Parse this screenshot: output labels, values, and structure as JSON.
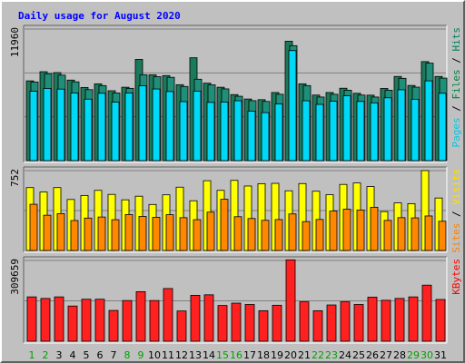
{
  "chart_data": {
    "type": "bar",
    "title": "Daily usage for August 2020",
    "categories": [
      "1",
      "2",
      "3",
      "4",
      "5",
      "6",
      "7",
      "8",
      "9",
      "10",
      "11",
      "12",
      "13",
      "14",
      "15",
      "16",
      "17",
      "18",
      "19",
      "20",
      "21",
      "22",
      "23",
      "24",
      "25",
      "26",
      "27",
      "28",
      "29",
      "30",
      "31"
    ],
    "weekend_days": [
      "1",
      "2",
      "8",
      "9",
      "15",
      "16",
      "22",
      "23",
      "29",
      "30"
    ],
    "panels": [
      {
        "id": "hits",
        "max_label": "11960",
        "ylim": [
          0,
          11960
        ],
        "ylabel_parts": [
          {
            "text": "Pages",
            "color": "#00c8e8"
          },
          {
            "text": " / ",
            "color": "#000000"
          },
          {
            "text": "Files",
            "color": "#008040"
          },
          {
            "text": " / ",
            "color": "#000000"
          },
          {
            "text": "Hits",
            "color": "#00805c"
          }
        ],
        "series": [
          {
            "name": "Hits",
            "color": "#1a7a5a",
            "values": [
              7250,
              8080,
              8000,
              7320,
              6650,
              6980,
              6350,
              6670,
              9200,
              7800,
              7730,
              6900,
              9350,
              7040,
              6670,
              6000,
              5600,
              5540,
              6190,
              10850,
              6980,
              5960,
              6190,
              6580,
              6120,
              5950,
              6560,
              7650,
              6830,
              9000,
              7650
            ]
          },
          {
            "name": "Files",
            "color": "#1a7a5a",
            "values": [
              7150,
              7900,
              7770,
              7160,
              6450,
              6820,
              6150,
              6570,
              7800,
              7630,
              7570,
              6740,
              7400,
              6890,
              6520,
              5850,
              5450,
              5380,
              6030,
              10450,
              6820,
              5780,
              6030,
              6400,
              5960,
              5780,
              6400,
              7480,
              6680,
              8860,
              7500
            ]
          },
          {
            "name": "Pages",
            "color": "#00d8f8",
            "values": [
              6300,
              6560,
              6500,
              6150,
              5590,
              6120,
              5320,
              6150,
              6810,
              6510,
              6280,
              5360,
              6320,
              5290,
              5320,
              5440,
              4500,
              4360,
              5150,
              10000,
              5440,
              5110,
              5400,
              5890,
              5380,
              5250,
              5710,
              6440,
              5580,
              7250,
              6120
            ]
          }
        ]
      },
      {
        "id": "visits",
        "max_label": "752",
        "ylim": [
          0,
          752
        ],
        "ylabel_parts": [
          {
            "text": "Sites",
            "color": "#ff8000"
          },
          {
            "text": " / ",
            "color": "#000000"
          },
          {
            "text": "Visits",
            "color": "#ffdd00"
          }
        ],
        "series": [
          {
            "name": "Visits",
            "color": "#ffff00",
            "values": [
              592,
              550,
              592,
              480,
              518,
              566,
              528,
              477,
              511,
              433,
              524,
              596,
              468,
              657,
              566,
              660,
              607,
              629,
              632,
              562,
              630,
              558,
              526,
              622,
              636,
              602,
              366,
              448,
              441,
              752,
              494
            ]
          },
          {
            "name": "Sites",
            "color": "#ff8800",
            "values": [
              435,
              332,
              347,
              282,
              305,
              315,
              290,
              338,
              321,
              312,
              337,
              309,
              290,
              361,
              482,
              318,
              301,
              284,
              291,
              344,
              272,
              292,
              371,
              389,
              381,
              407,
              283,
              309,
              307,
              325,
              275
            ]
          }
        ]
      },
      {
        "id": "kbytes",
        "max_label": "309659",
        "ylim": [
          0,
          309659
        ],
        "ylabel_parts": [
          {
            "text": "KBytes",
            "color": "#ff0000"
          }
        ],
        "series": [
          {
            "name": "KBytes",
            "color": "#ff2020",
            "values": [
              170000,
              164000,
              170000,
              135000,
              161000,
              161000,
              118000,
              156000,
              190000,
              156000,
              202000,
              116000,
              176000,
              178000,
              137000,
              146000,
              141000,
              117000,
              138000,
              312000,
              151000,
              117000,
              139000,
              151000,
              141000,
              169000,
              157000,
              164000,
              170000,
              215000,
              160000
            ]
          }
        ]
      }
    ]
  }
}
